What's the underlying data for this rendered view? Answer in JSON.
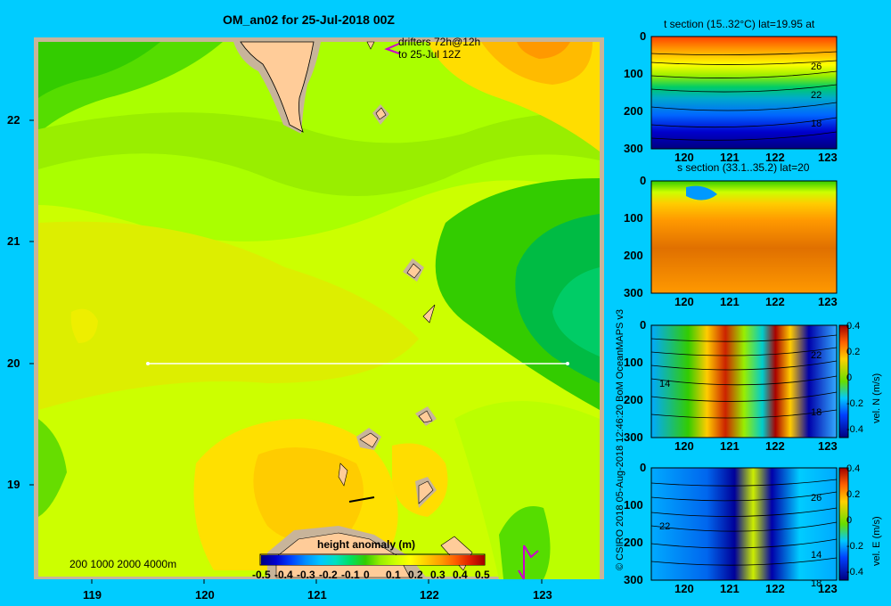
{
  "map": {
    "title": "OM_an02 for 25-Jul-2018 00Z",
    "drifters_line1": "drifters 72h@12h",
    "drifters_line2": "to 25-Jul 12Z",
    "scale_text": "200 1000 2000 4000m",
    "lon_ticks": [
      "119",
      "120",
      "121",
      "122",
      "123"
    ],
    "lat_ticks": [
      "22",
      "21",
      "20",
      "19"
    ],
    "colorbar_title": "height anomaly (m)",
    "colorbar_ticks": [
      "-0.5",
      "-0.4",
      "-0.3",
      "-0.2",
      "-0.1",
      "0",
      "0.1",
      "0.2",
      "0.3",
      "0.4",
      "0.5"
    ],
    "section_line": {
      "lat": 20,
      "lon_start": 119.5,
      "lon_end": 123.2
    }
  },
  "panels": [
    {
      "title": "t section (15..32°C) lat=19.95 at",
      "x_ticks": [
        "120",
        "121",
        "122",
        "123"
      ],
      "y_ticks": [
        "0",
        "100",
        "200",
        "300"
      ],
      "contour_labels": [
        "26",
        "22",
        "18"
      ]
    },
    {
      "title": "s section (33.1..35.2) lat=20",
      "x_ticks": [
        "120",
        "121",
        "122",
        "123"
      ],
      "y_ticks": [
        "0",
        "100",
        "200",
        "300"
      ]
    },
    {
      "title": "",
      "x_ticks": [
        "120",
        "121",
        "122",
        "123"
      ],
      "y_ticks": [
        "0",
        "100",
        "200",
        "300"
      ],
      "contour_labels": [
        "22",
        "14",
        "18"
      ],
      "colorbar_label": "vel. N (m/s)",
      "colorbar_ticks": [
        "0.4",
        "0.2",
        "0",
        "-0.2",
        "-0.4"
      ]
    },
    {
      "title": "",
      "x_ticks": [
        "120",
        "121",
        "122",
        "123"
      ],
      "y_ticks": [
        "0",
        "100",
        "200",
        "300"
      ],
      "contour_labels": [
        "26",
        "22",
        "14",
        "18"
      ],
      "colorbar_label": "vel. E (m/s)",
      "colorbar_ticks": [
        "0.4",
        "0.2",
        "0",
        "-0.2",
        "-0.4"
      ]
    }
  ],
  "credit": "© CSIRO 2018   05-Aug-2018 12:46:20 BoM OceanMAPS v3",
  "colors": {
    "background": "#00ccff",
    "land": "#ffcc99",
    "section_line": "#ffffff",
    "drifter": "#cc00cc"
  }
}
